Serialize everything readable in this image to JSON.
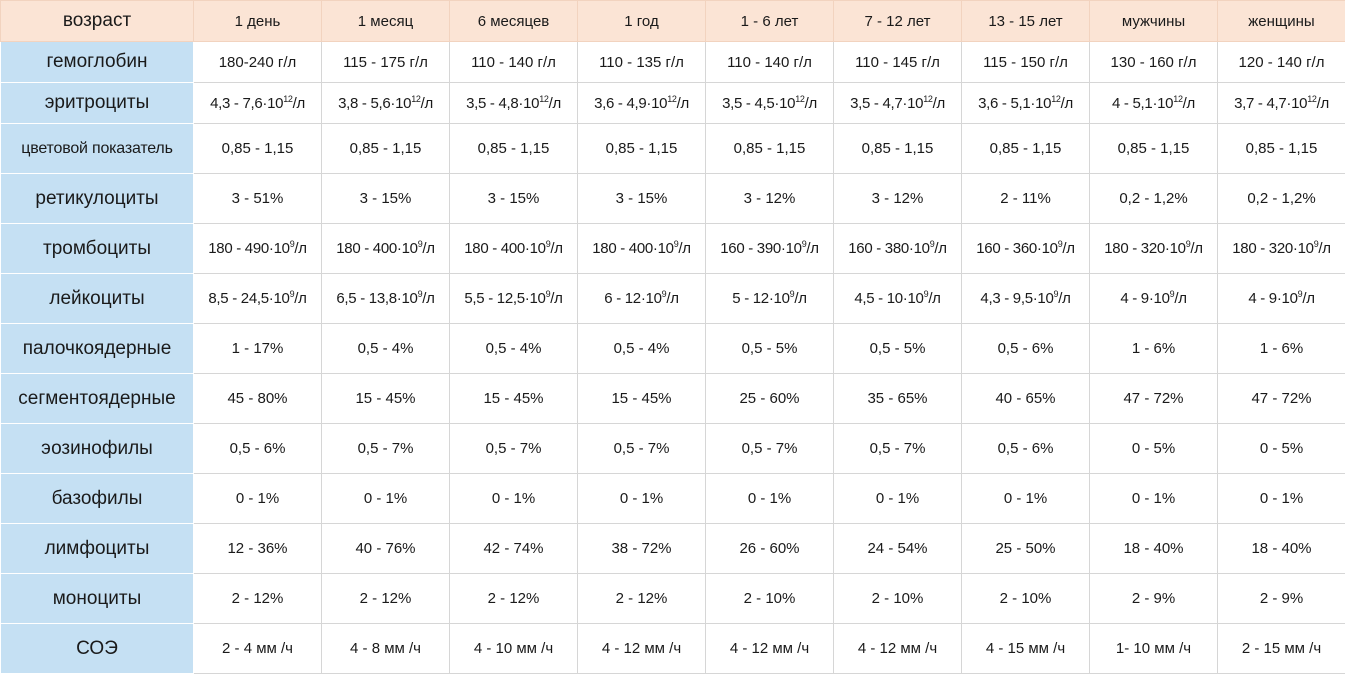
{
  "table": {
    "corner": "возраст",
    "columns": [
      "1 день",
      "1 месяц",
      "6 месяцев",
      "1 год",
      "1 - 6 лет",
      "7 - 12 лет",
      "13 - 15 лет",
      "мужчины",
      "женщины"
    ],
    "rows": [
      {
        "label": "гемоглобин",
        "values": [
          "180-240 г/л",
          "115 - 175 г/л",
          "110 - 140 г/л",
          "110 - 135 г/л",
          "110 - 140 г/л",
          "110 - 145 г/л",
          "115 - 150 г/л",
          "130 - 160 г/л",
          "120 - 140 г/л"
        ]
      },
      {
        "label": "эритроциты",
        "values": [
          {
            "pre": "4,3 - 7,6·10",
            "sup": "12",
            "post": "/л"
          },
          {
            "pre": "3,8 - 5,6·10",
            "sup": "12",
            "post": "/л"
          },
          {
            "pre": "3,5 - 4,8·10",
            "sup": "12",
            "post": "/л"
          },
          {
            "pre": "3,6 - 4,9·10",
            "sup": "12",
            "post": "/л"
          },
          {
            "pre": "3,5 - 4,5·10",
            "sup": "12",
            "post": "/л"
          },
          {
            "pre": "3,5 - 4,7·10",
            "sup": "12",
            "post": "/л"
          },
          {
            "pre": "3,6 - 5,1·10",
            "sup": "12",
            "post": "/л"
          },
          {
            "pre": "4 - 5,1·10",
            "sup": "12",
            "post": "/л"
          },
          {
            "pre": "3,7 - 4,7·10",
            "sup": "12",
            "post": "/л"
          }
        ]
      },
      {
        "label": "цветовой показатель",
        "values": [
          "0,85 - 1,15",
          "0,85 - 1,15",
          "0,85 - 1,15",
          "0,85 - 1,15",
          "0,85 - 1,15",
          "0,85 - 1,15",
          "0,85 - 1,15",
          "0,85 - 1,15",
          "0,85 - 1,15"
        ]
      },
      {
        "label": "ретикулоциты",
        "values": [
          "3 - 51%",
          "3 - 15%",
          "3 - 15%",
          "3 - 15%",
          "3 - 12%",
          "3 - 12%",
          "2 - 11%",
          "0,2 - 1,2%",
          "0,2 - 1,2%"
        ]
      },
      {
        "label": "тромбоциты",
        "values": [
          {
            "pre": "180 - 490·10",
            "sup": "9",
            "post": "/л"
          },
          {
            "pre": "180 - 400·10",
            "sup": "9",
            "post": "/л"
          },
          {
            "pre": "180 - 400·10",
            "sup": "9",
            "post": "/л"
          },
          {
            "pre": "180 - 400·10",
            "sup": "9",
            "post": "/л"
          },
          {
            "pre": "160 - 390·10",
            "sup": "9",
            "post": "/л"
          },
          {
            "pre": "160 - 380·10",
            "sup": "9",
            "post": "/л"
          },
          {
            "pre": "160 - 360·10",
            "sup": "9",
            "post": "/л"
          },
          {
            "pre": "180 - 320·10",
            "sup": "9",
            "post": "/л"
          },
          {
            "pre": "180 - 320·10",
            "sup": "9",
            "post": "/л"
          }
        ]
      },
      {
        "label": "лейкоциты",
        "values": [
          {
            "pre": "8,5 - 24,5·10",
            "sup": "9",
            "post": "/л"
          },
          {
            "pre": "6,5 - 13,8·10",
            "sup": "9",
            "post": "/л"
          },
          {
            "pre": "5,5 - 12,5·10",
            "sup": "9",
            "post": "/л"
          },
          {
            "pre": "6 - 12·10",
            "sup": "9",
            "post": "/л"
          },
          {
            "pre": "5 - 12·10",
            "sup": "9",
            "post": "/л"
          },
          {
            "pre": "4,5 - 10·10",
            "sup": "9",
            "post": "/л"
          },
          {
            "pre": "4,3 - 9,5·10",
            "sup": "9",
            "post": "/л"
          },
          {
            "pre": "4 - 9·10",
            "sup": "9",
            "post": "/л"
          },
          {
            "pre": "4 - 9·10",
            "sup": "9",
            "post": "/л"
          }
        ]
      },
      {
        "label": "палочкоядерные",
        "values": [
          "1 - 17%",
          "0,5 - 4%",
          "0,5 - 4%",
          "0,5 - 4%",
          "0,5 - 5%",
          "0,5 - 5%",
          "0,5 - 6%",
          "1 - 6%",
          "1 - 6%"
        ]
      },
      {
        "label": "сегментоядерные",
        "values": [
          "45 - 80%",
          "15 - 45%",
          "15 - 45%",
          "15 - 45%",
          "25 - 60%",
          "35 - 65%",
          "40 - 65%",
          "47 - 72%",
          "47 - 72%"
        ]
      },
      {
        "label": "эозинофилы",
        "values": [
          "0,5 - 6%",
          "0,5 - 7%",
          "0,5 - 7%",
          "0,5 - 7%",
          "0,5 - 7%",
          "0,5 - 7%",
          "0,5 - 6%",
          "0 - 5%",
          "0 - 5%"
        ]
      },
      {
        "label": "базофилы",
        "values": [
          "0 - 1%",
          "0 - 1%",
          "0 - 1%",
          "0 - 1%",
          "0 - 1%",
          "0 - 1%",
          "0 - 1%",
          "0 - 1%",
          "0 - 1%"
        ]
      },
      {
        "label": "лимфоциты",
        "values": [
          "12 - 36%",
          "40 - 76%",
          "42 - 74%",
          "38 - 72%",
          "26 - 60%",
          "24 - 54%",
          "25 - 50%",
          "18 - 40%",
          "18 - 40%"
        ]
      },
      {
        "label": "моноциты",
        "values": [
          "2 - 12%",
          "2 - 12%",
          "2 - 12%",
          "2 - 12%",
          "2 - 10%",
          "2 - 10%",
          "2 - 10%",
          "2 - 9%",
          "2 - 9%"
        ]
      },
      {
        "label": "СОЭ",
        "values": [
          "2 - 4 мм /ч",
          "4 - 8 мм /ч",
          "4 - 10 мм /ч",
          "4 - 12 мм /ч",
          "4 - 12 мм /ч",
          "4 - 12 мм /ч",
          "4 - 15 мм /ч",
          "1- 10 мм /ч",
          "2 - 15 мм /ч"
        ]
      }
    ]
  },
  "colors": {
    "header_bg": "#fbe4d5",
    "rowhead_bg": "#c5e0f3",
    "grid": "#d6d6d6",
    "text": "#1a1a1a"
  }
}
